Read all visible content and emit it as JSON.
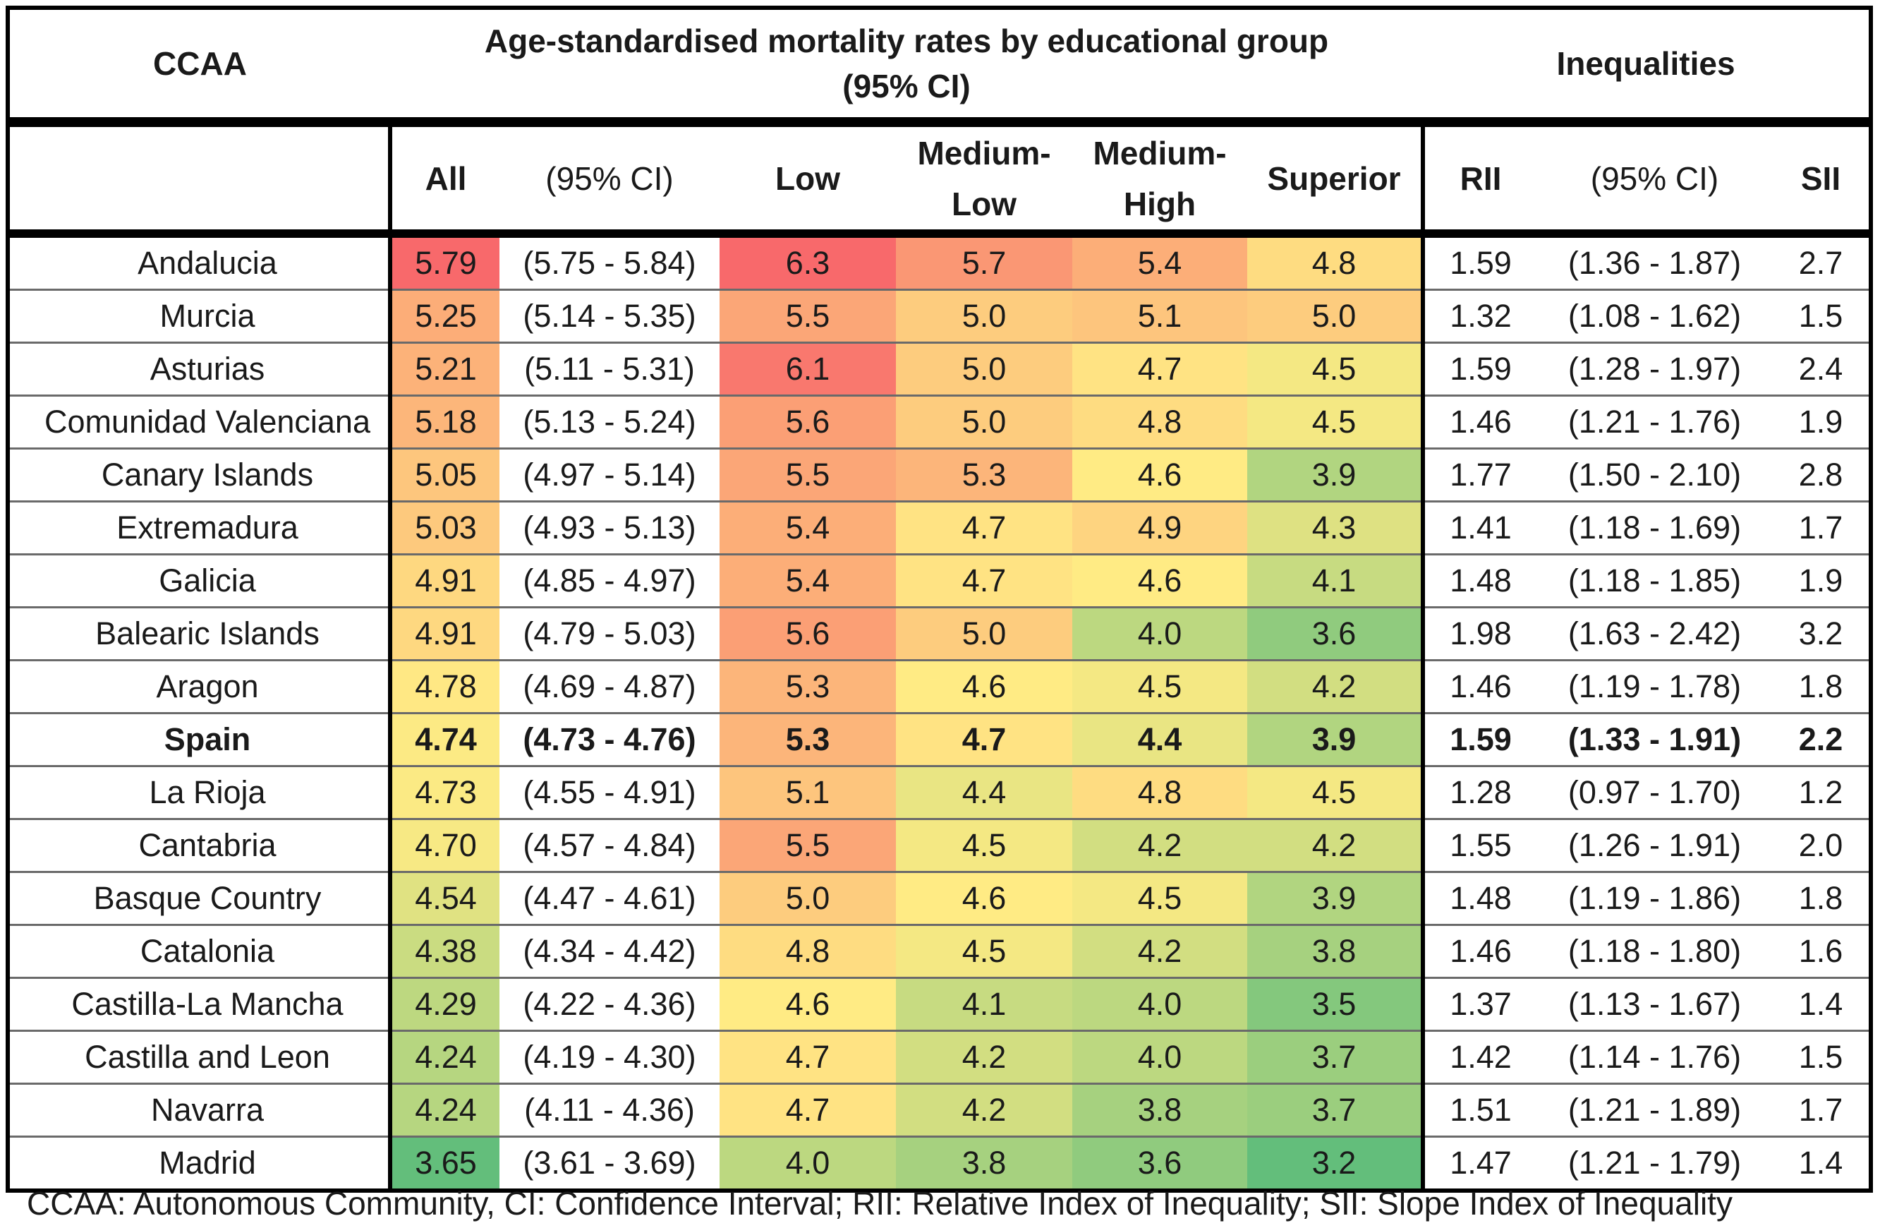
{
  "header": {
    "ccaa": "CCAA",
    "rates_title_line1": "Age-standardised mortality rates by educational group",
    "rates_title_line2": "(95% CI)",
    "inequalities": "Inequalities"
  },
  "columns": {
    "all": "All",
    "ci": "(95% CI)",
    "low": "Low",
    "medium_low_1": "Medium-",
    "medium_low_2": "Low",
    "medium_high_1": "Medium-",
    "medium_high_2": "High",
    "superior": "Superior",
    "rii": "RII",
    "rii_ci": "(95% CI)",
    "sii": "SII"
  },
  "color_scale": {
    "low": "#63BE7B",
    "mid": "#FFEB84",
    "high": "#F8696B"
  },
  "rows": [
    {
      "name": "Andalucia",
      "all": "5.79",
      "ci": "(5.75 - 5.84)",
      "low": "6.3",
      "ml": "5.7",
      "mh": "5.4",
      "sup": "4.8",
      "rii": "1.59",
      "rii_ci": "(1.36 - 1.87)",
      "sii": "2.7"
    },
    {
      "name": "Murcia",
      "all": "5.25",
      "ci": "(5.14 - 5.35)",
      "low": "5.5",
      "ml": "5.0",
      "mh": "5.1",
      "sup": "5.0",
      "rii": "1.32",
      "rii_ci": "(1.08 - 1.62)",
      "sii": "1.5"
    },
    {
      "name": "Asturias",
      "all": "5.21",
      "ci": "(5.11 - 5.31)",
      "low": "6.1",
      "ml": "5.0",
      "mh": "4.7",
      "sup": "4.5",
      "rii": "1.59",
      "rii_ci": "(1.28 - 1.97)",
      "sii": "2.4"
    },
    {
      "name": "Comunidad Valenciana",
      "all": "5.18",
      "ci": "(5.13 - 5.24)",
      "low": "5.6",
      "ml": "5.0",
      "mh": "4.8",
      "sup": "4.5",
      "rii": "1.46",
      "rii_ci": "(1.21 - 1.76)",
      "sii": "1.9"
    },
    {
      "name": "Canary Islands",
      "all": "5.05",
      "ci": "(4.97 - 5.14)",
      "low": "5.5",
      "ml": "5.3",
      "mh": "4.6",
      "sup": "3.9",
      "rii": "1.77",
      "rii_ci": "(1.50 - 2.10)",
      "sii": "2.8"
    },
    {
      "name": "Extremadura",
      "all": "5.03",
      "ci": "(4.93 - 5.13)",
      "low": "5.4",
      "ml": "4.7",
      "mh": "4.9",
      "sup": "4.3",
      "rii": "1.41",
      "rii_ci": "(1.18 - 1.69)",
      "sii": "1.7"
    },
    {
      "name": "Galicia",
      "all": "4.91",
      "ci": "(4.85 - 4.97)",
      "low": "5.4",
      "ml": "4.7",
      "mh": "4.6",
      "sup": "4.1",
      "rii": "1.48",
      "rii_ci": "(1.18 - 1.85)",
      "sii": "1.9"
    },
    {
      "name": "Balearic Islands",
      "all": "4.91",
      "ci": "(4.79 - 5.03)",
      "low": "5.6",
      "ml": "5.0",
      "mh": "4.0",
      "sup": "3.6",
      "rii": "1.98",
      "rii_ci": "(1.63 - 2.42)",
      "sii": "3.2"
    },
    {
      "name": "Aragon",
      "all": "4.78",
      "ci": "(4.69 - 4.87)",
      "low": "5.3",
      "ml": "4.6",
      "mh": "4.5",
      "sup": "4.2",
      "rii": "1.46",
      "rii_ci": "(1.19 - 1.78)",
      "sii": "1.8"
    },
    {
      "name": "Spain",
      "all": "4.74",
      "ci": "(4.73 - 4.76)",
      "low": "5.3",
      "ml": "4.7",
      "mh": "4.4",
      "sup": "3.9",
      "rii": "1.59",
      "rii_ci": "(1.33 - 1.91)",
      "sii": "2.2",
      "bold": true
    },
    {
      "name": "La Rioja",
      "all": "4.73",
      "ci": "(4.55 - 4.91)",
      "low": "5.1",
      "ml": "4.4",
      "mh": "4.8",
      "sup": "4.5",
      "rii": "1.28",
      "rii_ci": "(0.97 - 1.70)",
      "sii": "1.2"
    },
    {
      "name": "Cantabria",
      "all": "4.70",
      "ci": "(4.57 - 4.84)",
      "low": "5.5",
      "ml": "4.5",
      "mh": "4.2",
      "sup": "4.2",
      "rii": "1.55",
      "rii_ci": "(1.26 - 1.91)",
      "sii": "2.0"
    },
    {
      "name": "Basque Country",
      "all": "4.54",
      "ci": "(4.47 - 4.61)",
      "low": "5.0",
      "ml": "4.6",
      "mh": "4.5",
      "sup": "3.9",
      "rii": "1.48",
      "rii_ci": "(1.19 - 1.86)",
      "sii": "1.8"
    },
    {
      "name": "Catalonia",
      "all": "4.38",
      "ci": "(4.34 - 4.42)",
      "low": "4.8",
      "ml": "4.5",
      "mh": "4.2",
      "sup": "3.8",
      "rii": "1.46",
      "rii_ci": "(1.18 - 1.80)",
      "sii": "1.6"
    },
    {
      "name": "Castilla-La Mancha",
      "all": "4.29",
      "ci": "(4.22 - 4.36)",
      "low": "4.6",
      "ml": "4.1",
      "mh": "4.0",
      "sup": "3.5",
      "rii": "1.37",
      "rii_ci": "(1.13 - 1.67)",
      "sii": "1.4"
    },
    {
      "name": "Castilla and Leon",
      "all": "4.24",
      "ci": "(4.19 - 4.30)",
      "low": "4.7",
      "ml": "4.2",
      "mh": "4.0",
      "sup": "3.7",
      "rii": "1.42",
      "rii_ci": "(1.14 - 1.76)",
      "sii": "1.5"
    },
    {
      "name": "Navarra",
      "all": "4.24",
      "ci": "(4.11 - 4.36)",
      "low": "4.7",
      "ml": "4.2",
      "mh": "3.8",
      "sup": "3.7",
      "rii": "1.51",
      "rii_ci": "(1.21 - 1.89)",
      "sii": "1.7"
    },
    {
      "name": "Madrid",
      "all": "3.65",
      "ci": "(3.61 - 3.69)",
      "low": "4.0",
      "ml": "3.8",
      "mh": "3.6",
      "sup": "3.2",
      "rii": "1.47",
      "rii_ci": "(1.21 - 1.79)",
      "sii": "1.4"
    }
  ],
  "footnote": "CCAA: Autonomous Community, CI: Confidence Interval; RII: Relative Index of Inequality; SII: Slope Index of Inequality"
}
